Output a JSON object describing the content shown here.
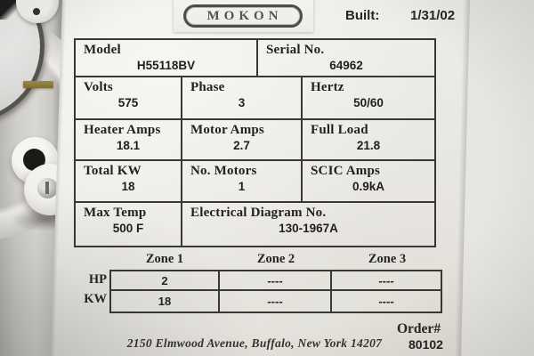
{
  "colors": {
    "background": "#e7e6e3",
    "sticker": "#edebe6",
    "table_border": "#3a3833",
    "text": "#23221e",
    "logo_ink": "#54534e",
    "olive_slot": "#8f7c3e"
  },
  "header": {
    "logo_text": "MOKON",
    "built_label": "Built:",
    "built_value": "1/31/02"
  },
  "spec_table": {
    "rows": [
      {
        "cells": [
          {
            "label": "Model",
            "value": "H55118BV"
          },
          {
            "label": "Serial No.",
            "value": "64962"
          }
        ]
      },
      {
        "cells": [
          {
            "label": "Volts",
            "value": "575"
          },
          {
            "label": "Phase",
            "value": "3"
          },
          {
            "label": "Hertz",
            "value": "50/60"
          }
        ]
      },
      {
        "cells": [
          {
            "label": "Heater Amps",
            "value": "18.1"
          },
          {
            "label": "Motor Amps",
            "value": "2.7"
          },
          {
            "label": "Full Load",
            "value": "21.8"
          }
        ]
      },
      {
        "cells": [
          {
            "label": "Total KW",
            "value": "18"
          },
          {
            "label": "No. Motors",
            "value": "1"
          },
          {
            "label": "SCIC Amps",
            "value": "0.9kA"
          }
        ]
      },
      {
        "cells": [
          {
            "label": "Max Temp",
            "value": "500 F"
          },
          {
            "label": "Electrical Diagram No.",
            "value": "130-1967A"
          }
        ]
      }
    ]
  },
  "zone_table": {
    "column_headers": [
      "Zone 1",
      "Zone 2",
      "Zone 3"
    ],
    "rows": [
      {
        "label": "HP",
        "values": [
          "2",
          "----",
          "----"
        ]
      },
      {
        "label": "KW",
        "values": [
          "18",
          "----",
          "----"
        ]
      }
    ]
  },
  "footer": {
    "address": "2150 Elmwood Avenue, Buffalo, New York 14207",
    "order_label": "Order#",
    "order_value": "80102"
  }
}
